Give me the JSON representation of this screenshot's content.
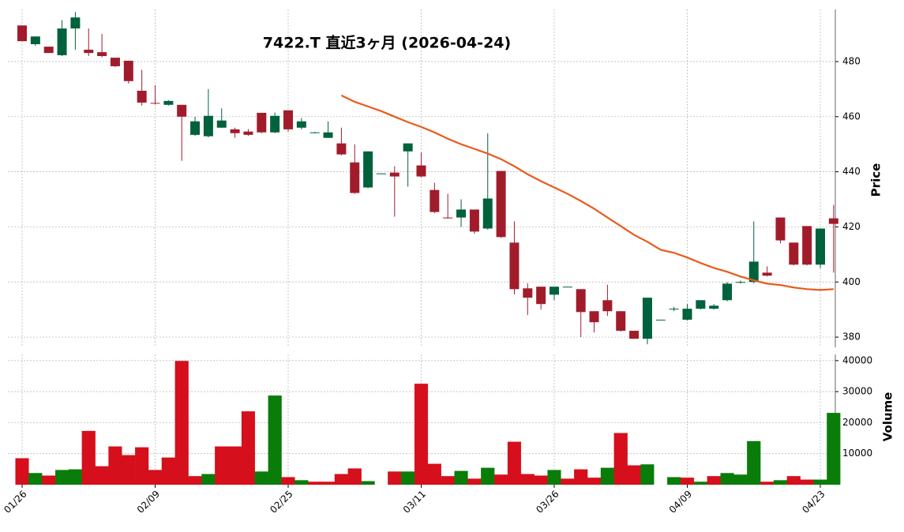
{
  "chart_data": {
    "type": "candlestick",
    "title": "7422.T  直近3ヶ月  (2026-04-24)",
    "ylabel": "Price",
    "categories": [
      "01/26",
      null,
      null,
      null,
      null,
      null,
      null,
      null,
      null,
      null,
      "02/09",
      null,
      null,
      null,
      null,
      null,
      null,
      null,
      null,
      null,
      "02/25",
      null,
      null,
      null,
      null,
      null,
      null,
      null,
      null,
      null,
      "03/11",
      null,
      null,
      null,
      null,
      null,
      null,
      null,
      null,
      null,
      "03/26",
      null,
      null,
      null,
      null,
      null,
      null,
      null,
      null,
      null,
      "04/09",
      null,
      null,
      null,
      null,
      null,
      null,
      null,
      null,
      null,
      "04/23",
      null
    ],
    "open": [
      493.1,
      486.3,
      485.4,
      482.3,
      492,
      484.3,
      483.4,
      481.4,
      480.3,
      469.4,
      465,
      464.3,
      464.3,
      453.4,
      452.9,
      456,
      455.4,
      454.6,
      461.4,
      454.3,
      462.3,
      456,
      454.3,
      452.3,
      450.3,
      443.4,
      434.3,
      439.4,
      439.7,
      447.4,
      442.3,
      433.4,
      423.4,
      423.4,
      426.3,
      419.4,
      440.3,
      414.3,
      397.7,
      398.3,
      395.4,
      398.3,
      397.4,
      389.4,
      393.4,
      389.4,
      382.3,
      379.4,
      386.3,
      390.3,
      386.3,
      390.3,
      390.3,
      393.4,
      400,
      400,
      403.4,
      423.4,
      414.3,
      420.3,
      406.3,
      423.1
    ],
    "high": [
      493.1,
      489.1,
      485.4,
      495,
      498,
      492,
      490,
      481.4,
      480.3,
      477,
      471.4,
      466,
      464.3,
      460,
      470,
      463,
      456,
      455.5,
      461.4,
      461.5,
      462.3,
      459.5,
      454.5,
      458.3,
      456,
      450,
      447.4,
      439.4,
      442,
      450.3,
      447,
      436,
      432,
      430,
      426.3,
      454,
      440.3,
      422,
      399.5,
      398.3,
      398.3,
      398.3,
      397.4,
      389.4,
      399,
      389.4,
      382.3,
      394.3,
      386.3,
      391,
      392,
      393.4,
      392,
      400,
      400.5,
      422,
      405.7,
      423.4,
      414.3,
      420.3,
      419.4,
      428
    ],
    "low": [
      487.4,
      485.7,
      483.1,
      482,
      484.3,
      482,
      481.5,
      478,
      472,
      464,
      464.5,
      464,
      444,
      453,
      452.5,
      456,
      452.3,
      453,
      454,
      454,
      454.5,
      455.4,
      454,
      452.3,
      446,
      432,
      434,
      439.4,
      423.7,
      434.6,
      438,
      425,
      423,
      420,
      417.5,
      419,
      416,
      395.5,
      388,
      390,
      393.4,
      398.3,
      380,
      381.7,
      387.7,
      382,
      379.4,
      377.4,
      386.3,
      389.4,
      386,
      390,
      390,
      393,
      399.5,
      399.5,
      402,
      414,
      406,
      406,
      405,
      403.4
    ],
    "close": [
      487.4,
      489.1,
      483.1,
      492,
      496,
      483.1,
      482,
      478.3,
      472.9,
      465.1,
      464.8,
      465.7,
      460,
      458.3,
      460.3,
      458.6,
      454,
      453.4,
      454.3,
      460.3,
      455.4,
      458.3,
      454.3,
      454.3,
      446.3,
      432.3,
      447.4,
      439.4,
      438.3,
      450.3,
      438.3,
      425.4,
      423.1,
      426.3,
      418.3,
      430.3,
      416.3,
      397.4,
      394.3,
      392,
      398.3,
      398.3,
      389.1,
      385.4,
      389.4,
      382.3,
      379.4,
      394.3,
      386.3,
      390.3,
      390.3,
      393.4,
      391.4,
      399.4,
      400,
      407.4,
      402.3,
      415.1,
      406.3,
      406.3,
      419.4,
      421.1
    ],
    "up_color": "#00623c",
    "down_color": "#a11c2b",
    "ylim": [
      376.3,
      498.9
    ],
    "yticks": [
      380,
      400,
      420,
      440,
      460,
      480
    ],
    "grid": true,
    "sma": {
      "color": "#ea5a1a",
      "values": [
        null,
        null,
        null,
        null,
        null,
        null,
        null,
        null,
        null,
        null,
        null,
        null,
        null,
        null,
        null,
        null,
        null,
        null,
        null,
        null,
        null,
        null,
        null,
        null,
        467.7,
        465.4,
        463.7,
        462,
        460,
        458,
        456.3,
        454.3,
        452,
        450,
        448.3,
        446.6,
        444.6,
        442,
        439.1,
        436.6,
        434.3,
        432,
        429.4,
        426.6,
        423.4,
        420.3,
        417.1,
        414.6,
        411.7,
        410.6,
        408.9,
        406.9,
        405.1,
        403.7,
        402,
        400.6,
        399.4,
        398.9,
        398,
        397.4,
        397.1,
        397.4
      ]
    },
    "volume": {
      "ylabel": "Volume",
      "values": [
        8500,
        3700,
        2900,
        4700,
        4900,
        17300,
        5900,
        12300,
        9500,
        12000,
        4700,
        8700,
        39850,
        2700,
        3400,
        12300,
        12300,
        23600,
        4200,
        28700,
        2400,
        1400,
        900,
        900,
        3400,
        5200,
        1100,
        0,
        4200,
        4200,
        32500,
        6700,
        2700,
        4400,
        1900,
        5400,
        3200,
        13800,
        3400,
        2900,
        4700,
        1900,
        4900,
        2200,
        5400,
        16600,
        6200,
        6500,
        0,
        2400,
        2200,
        900,
        2700,
        3700,
        3200,
        14000,
        900,
        1400,
        2700,
        1600,
        1600,
        23100
      ],
      "dirs": [
        "r",
        "g",
        "r",
        "g",
        "g",
        "r",
        "r",
        "r",
        "r",
        "r",
        "r",
        "r",
        "r",
        "r",
        "g",
        "r",
        "r",
        "r",
        "g",
        "g",
        "r",
        "g",
        "r",
        "r",
        "r",
        "r",
        "g",
        "g",
        "r",
        "g",
        "r",
        "r",
        "r",
        "g",
        "r",
        "g",
        "r",
        "r",
        "r",
        "r",
        "g",
        "r",
        "r",
        "r",
        "g",
        "r",
        "r",
        "g",
        "g",
        "g",
        "r",
        "g",
        "r",
        "g",
        "g",
        "g",
        "r",
        "g",
        "r",
        "r",
        "g",
        "g"
      ],
      "colors": {
        "g": "#0a7c0a",
        "r": "#d50f1b"
      },
      "ylim": [
        0,
        42000
      ],
      "yticks": [
        10000,
        20000,
        30000,
        40000
      ]
    }
  }
}
